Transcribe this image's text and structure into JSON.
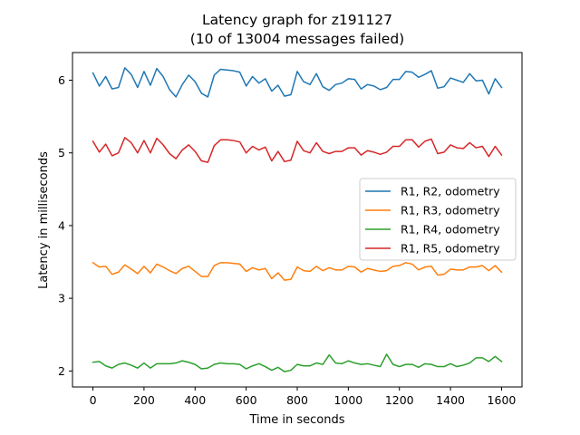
{
  "chart_data": {
    "type": "line",
    "title": "Latency graph for z191127",
    "subtitle": "(10 of 13004 messages failed)",
    "xlabel": "Time in seconds",
    "ylabel": "Latency in milliseconds",
    "xlim": [
      -80,
      1680
    ],
    "ylim": [
      1.78,
      6.38
    ],
    "xticks": [
      0,
      200,
      400,
      600,
      800,
      1000,
      1200,
      1400,
      1600
    ],
    "yticks": [
      2,
      3,
      4,
      5,
      6
    ],
    "grid": false,
    "legend_position": "center-right",
    "x": [
      0,
      25,
      50,
      75,
      100,
      125,
      150,
      175,
      200,
      225,
      250,
      275,
      300,
      325,
      350,
      375,
      400,
      425,
      450,
      475,
      500,
      525,
      550,
      575,
      600,
      625,
      650,
      675,
      700,
      725,
      750,
      775,
      800,
      825,
      850,
      875,
      900,
      925,
      950,
      975,
      1000,
      1025,
      1050,
      1075,
      1100,
      1125,
      1150,
      1175,
      1200,
      1225,
      1250,
      1275,
      1300,
      1325,
      1350,
      1375,
      1400,
      1425,
      1450,
      1475,
      1500,
      1525,
      1550,
      1575,
      1600
    ],
    "series": [
      {
        "name": "R1, R2, odometry",
        "color": "#1f77b4",
        "values": [
          6.1,
          5.92,
          6.05,
          5.88,
          5.9,
          6.17,
          6.08,
          5.9,
          6.12,
          5.93,
          6.16,
          6.05,
          5.87,
          5.77,
          5.94,
          6.07,
          5.98,
          5.82,
          5.77,
          6.07,
          6.15,
          6.14,
          6.13,
          6.11,
          5.92,
          6.05,
          5.96,
          6.02,
          5.85,
          5.93,
          5.78,
          5.8,
          6.12,
          5.98,
          5.94,
          6.09,
          5.91,
          5.86,
          5.94,
          5.96,
          6.02,
          6.01,
          5.88,
          5.94,
          5.92,
          5.87,
          5.9,
          6.01,
          6.01,
          6.12,
          6.11,
          6.04,
          6.08,
          6.13,
          5.89,
          5.91,
          6.03,
          6.0,
          5.97,
          6.09,
          5.99,
          6.0,
          5.81,
          6.02,
          5.9
        ]
      },
      {
        "name": "R1, R3, odometry",
        "color": "#ff7f0e",
        "values": [
          3.49,
          3.43,
          3.44,
          3.33,
          3.36,
          3.46,
          3.4,
          3.34,
          3.44,
          3.35,
          3.47,
          3.43,
          3.38,
          3.34,
          3.41,
          3.44,
          3.37,
          3.3,
          3.3,
          3.45,
          3.49,
          3.49,
          3.48,
          3.47,
          3.37,
          3.42,
          3.39,
          3.41,
          3.27,
          3.35,
          3.25,
          3.26,
          3.43,
          3.38,
          3.37,
          3.44,
          3.38,
          3.42,
          3.39,
          3.39,
          3.44,
          3.43,
          3.36,
          3.41,
          3.39,
          3.37,
          3.38,
          3.44,
          3.45,
          3.49,
          3.47,
          3.39,
          3.43,
          3.44,
          3.32,
          3.33,
          3.4,
          3.39,
          3.39,
          3.43,
          3.43,
          3.45,
          3.38,
          3.45,
          3.36
        ]
      },
      {
        "name": "R1, R4, odometry",
        "color": "#2ca02c",
        "values": [
          2.12,
          2.13,
          2.07,
          2.04,
          2.09,
          2.11,
          2.08,
          2.04,
          2.11,
          2.04,
          2.1,
          2.1,
          2.1,
          2.11,
          2.14,
          2.12,
          2.09,
          2.03,
          2.04,
          2.09,
          2.11,
          2.1,
          2.1,
          2.09,
          2.03,
          2.07,
          2.1,
          2.06,
          2.01,
          2.05,
          1.99,
          2.01,
          2.09,
          2.07,
          2.07,
          2.11,
          2.09,
          2.22,
          2.11,
          2.1,
          2.14,
          2.11,
          2.09,
          2.1,
          2.08,
          2.06,
          2.23,
          2.09,
          2.06,
          2.09,
          2.09,
          2.05,
          2.1,
          2.09,
          2.06,
          2.06,
          2.1,
          2.06,
          2.08,
          2.11,
          2.18,
          2.18,
          2.13,
          2.2,
          2.13
        ]
      },
      {
        "name": "R1, R5, odometry",
        "color": "#d62728",
        "values": [
          5.16,
          5.01,
          5.12,
          4.96,
          5.0,
          5.21,
          5.14,
          5.0,
          5.17,
          5.0,
          5.2,
          5.11,
          4.99,
          4.92,
          5.04,
          5.11,
          5.02,
          4.89,
          4.87,
          5.1,
          5.18,
          5.18,
          5.17,
          5.15,
          5.0,
          5.09,
          5.04,
          5.08,
          4.89,
          5.02,
          4.88,
          4.9,
          5.16,
          5.03,
          5.0,
          5.14,
          5.02,
          4.99,
          5.02,
          5.02,
          5.07,
          5.07,
          4.97,
          5.03,
          5.01,
          4.98,
          5.01,
          5.09,
          5.09,
          5.18,
          5.18,
          5.08,
          5.16,
          5.19,
          4.99,
          5.01,
          5.11,
          5.07,
          5.06,
          5.14,
          5.07,
          5.09,
          4.95,
          5.09,
          4.97
        ]
      }
    ]
  }
}
